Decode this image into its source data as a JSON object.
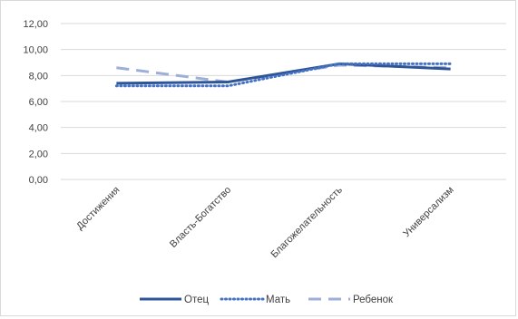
{
  "chart_data": {
    "type": "line",
    "categories": [
      "Достижения",
      "Власть-Богатство",
      "Благожелательность",
      "Универсализм"
    ],
    "y_tick_labels": [
      "0,00",
      "2,00",
      "4,00",
      "6,00",
      "8,00",
      "10,00",
      "12,00"
    ],
    "ylim": [
      0,
      12
    ],
    "grid": true,
    "legend_position": "bottom",
    "title": "",
    "xlabel": "",
    "ylabel": "",
    "series": [
      {
        "name": "Отец",
        "values": [
          7.4,
          7.5,
          8.9,
          8.5
        ],
        "color": "#2f5597",
        "dash": "solid"
      },
      {
        "name": "Мать",
        "values": [
          7.2,
          7.2,
          8.9,
          8.9
        ],
        "color": "#4472c4",
        "dash": "dotted"
      },
      {
        "name": "Ребенок",
        "values": [
          8.6,
          7.5,
          8.8,
          8.6
        ],
        "color": "#9dafd7",
        "dash": "dashed"
      }
    ]
  }
}
